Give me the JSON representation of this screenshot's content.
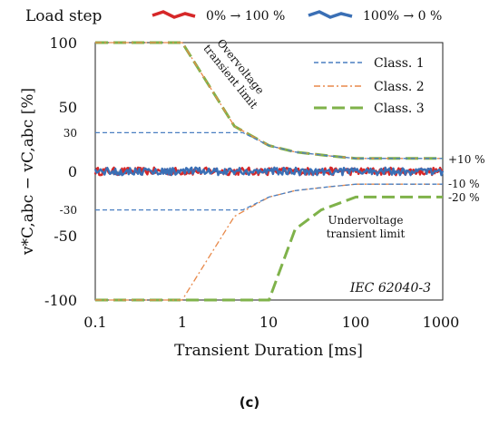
{
  "chart_data": {
    "type": "line",
    "xlabel": "Transient Duration [ms]",
    "ylabel": "v*C,abc − vC,abc [%]",
    "xscale": "log",
    "xlim": [
      0.1,
      1000
    ],
    "ylim": [
      -100,
      100
    ],
    "xticks": [
      "0.1",
      "1",
      "10",
      "100",
      "1000"
    ],
    "yticks": [
      "100",
      "50",
      "30",
      "0",
      "-30",
      "-50",
      "-100"
    ],
    "caption": "(c)",
    "legend_top": {
      "title": "Load step",
      "entries": [
        {
          "name": "0% → 100 %",
          "color": "#d62728"
        },
        {
          "name": "100% → 0 %",
          "color": "#3a6fb5"
        }
      ]
    },
    "legend_inner": {
      "placement": "top-right",
      "entries": [
        {
          "name": "Class. 1",
          "color": "#4a7fc1",
          "style": "dashed"
        },
        {
          "name": "Class. 2",
          "color": "#e8894a",
          "style": "dash-dot"
        },
        {
          "name": "Class. 3",
          "color": "#7fb24a",
          "style": "long-dash"
        }
      ]
    },
    "annotations": {
      "overvoltage": [
        "Overvoltage",
        "transient limit"
      ],
      "undervoltage": [
        "Undervoltage",
        "transient limit"
      ],
      "standard": "IEC 62040-3",
      "plus10": "+10 %",
      "minus10": "-10 %",
      "minus20": "-20 %"
    },
    "series": [
      {
        "name": "Class. 1",
        "color": "#4a7fc1",
        "style": "dashed",
        "upper": {
          "x": [
            0.1,
            5,
            10,
            20,
            50,
            100,
            1000
          ],
          "y": [
            30,
            30,
            20,
            15,
            12,
            10,
            10
          ]
        },
        "lower": {
          "x": [
            0.1,
            5,
            10,
            20,
            50,
            100,
            1000
          ],
          "y": [
            -30,
            -30,
            -20,
            -15,
            -12,
            -10,
            -10
          ]
        }
      },
      {
        "name": "Class. 2",
        "color": "#e8894a",
        "style": "dash-dot",
        "upper": {
          "x": [
            0.1,
            1,
            4,
            10,
            20,
            50,
            100,
            1000
          ],
          "y": [
            100,
            100,
            35,
            20,
            15,
            12,
            10,
            10
          ]
        },
        "lower": {
          "x": [
            0.1,
            1,
            4,
            10,
            20,
            50,
            100,
            1000
          ],
          "y": [
            -100,
            -100,
            -35,
            -20,
            -15,
            -12,
            -10,
            -10
          ]
        }
      },
      {
        "name": "Class. 3",
        "color": "#7fb24a",
        "style": "long-dash",
        "upper": {
          "x": [
            0.1,
            1,
            4,
            10,
            20,
            50,
            100,
            1000
          ],
          "y": [
            100,
            100,
            35,
            20,
            15,
            12,
            10,
            10
          ]
        },
        "lower": {
          "x": [
            0.1,
            10,
            20,
            40,
            100,
            1000
          ],
          "y": [
            -100,
            -100,
            -45,
            -30,
            -20,
            -20
          ]
        }
      },
      {
        "name": "0% → 100 %",
        "color": "#d62728",
        "style": "noise",
        "amplitude": 3
      },
      {
        "name": "100% → 0 %",
        "color": "#3a6fb5",
        "style": "noise",
        "amplitude": 3
      }
    ]
  }
}
